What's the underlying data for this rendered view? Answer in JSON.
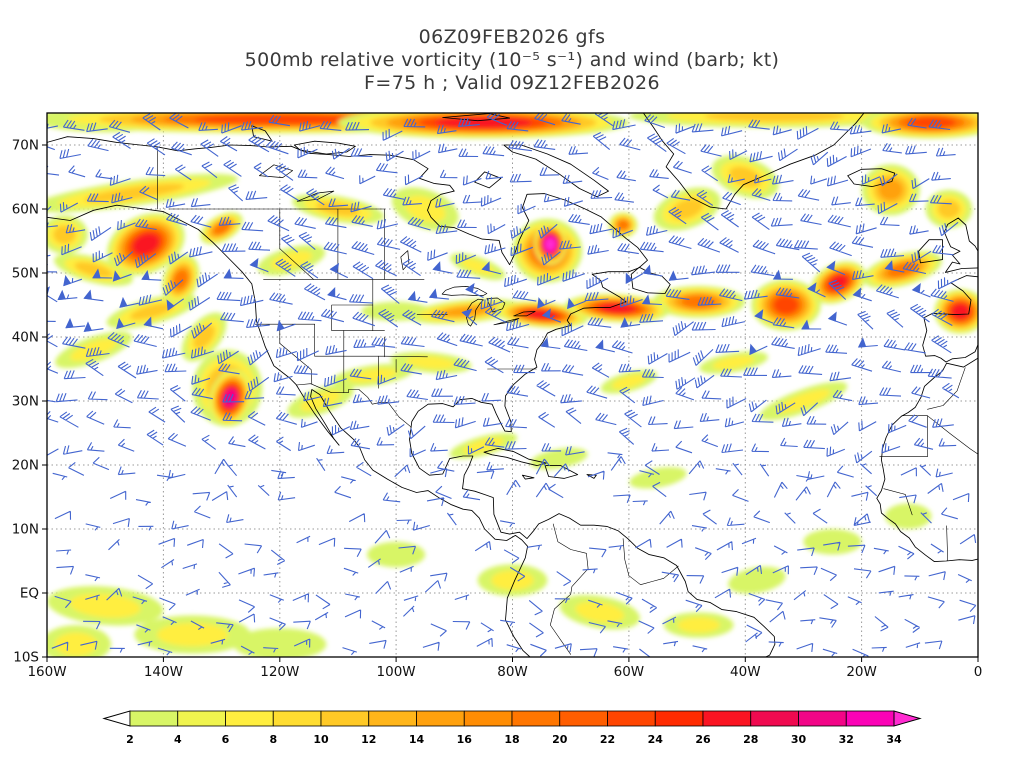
{
  "title": {
    "line1": "06Z09FEB2026 gfs",
    "line2": "500mb relative vorticity (10⁻⁵ s⁻¹) and wind (barb; kt)",
    "line3": "F=75 h ; Valid 09Z12FEB2026"
  },
  "axes": {
    "lat_ticks": [
      {
        "label": "70N",
        "value": 70
      },
      {
        "label": "60N",
        "value": 60
      },
      {
        "label": "50N",
        "value": 50
      },
      {
        "label": "40N",
        "value": 40
      },
      {
        "label": "30N",
        "value": 30
      },
      {
        "label": "20N",
        "value": 20
      },
      {
        "label": "10N",
        "value": 10
      },
      {
        "label": "EQ",
        "value": 0
      },
      {
        "label": "10S",
        "value": -10
      }
    ],
    "lon_ticks": [
      {
        "label": "160W",
        "value": -160
      },
      {
        "label": "140W",
        "value": -140
      },
      {
        "label": "120W",
        "value": -120
      },
      {
        "label": "100W",
        "value": -100
      },
      {
        "label": "80W",
        "value": -80
      },
      {
        "label": "60W",
        "value": -60
      },
      {
        "label": "40W",
        "value": -40
      },
      {
        "label": "20W",
        "value": -20
      },
      {
        "label": "0",
        "value": 0
      }
    ]
  },
  "palette": {
    "title_text": "#3a3a3a",
    "axis_text": "#111111",
    "grid": "#999999",
    "coast": "#000000",
    "frame": "#000000",
    "background": "#ffffff"
  },
  "chart_data": {
    "type": "heatmap",
    "model": "gfs",
    "init_time": "06Z09FEB2026",
    "forecast_hour_h": 75,
    "valid_time": "09Z12FEB2026",
    "level": "500mb",
    "field": "relative vorticity",
    "units": "10⁻⁵ s⁻¹",
    "wind_annotation": "wind (barb; kt)",
    "lon_range": [
      -160,
      0
    ],
    "lat_range": [
      -10,
      75
    ],
    "grid_spacing_deg": {
      "lat": 10,
      "lon": 20
    },
    "colorbar": {
      "levels": [
        2,
        4,
        6,
        8,
        10,
        12,
        14,
        16,
        18,
        20,
        22,
        24,
        26,
        28,
        30,
        32,
        34
      ],
      "colors": [
        "#d8f566",
        "#f0f44e",
        "#ffee3f",
        "#ffdd31",
        "#ffc926",
        "#ffb51a",
        "#ffa10e",
        "#ff8d04",
        "#ff7600",
        "#ff5e00",
        "#ff4500",
        "#ff2b00",
        "#fa1422",
        "#f00a50",
        "#f20587",
        "#fb02b6"
      ],
      "below_color": "#ffffff",
      "above_color": "#ff2bd1"
    },
    "vorticity_feature_columns": [
      "lon",
      "lat",
      "rx_deg",
      "ry_deg",
      "rotation_deg",
      "peak"
    ],
    "vorticity_features": [
      [
        -120,
        74,
        42,
        2.2,
        0,
        22
      ],
      [
        -85,
        73.5,
        25,
        2.5,
        0,
        26
      ],
      [
        -35,
        74.5,
        25,
        1.8,
        0,
        12
      ],
      [
        -8,
        73.5,
        12,
        2.5,
        0,
        22
      ],
      [
        -150,
        74,
        12,
        2,
        0,
        16
      ],
      [
        -145,
        62.5,
        18,
        2,
        -8,
        12
      ],
      [
        -157,
        56,
        4,
        3,
        0,
        10
      ],
      [
        -143,
        54.5,
        7,
        4.5,
        -25,
        26
      ],
      [
        -152,
        50.5,
        7,
        2,
        15,
        12
      ],
      [
        -137,
        49,
        3,
        4,
        20,
        18
      ],
      [
        -130,
        57,
        4,
        2,
        -30,
        20
      ],
      [
        -73.5,
        54.5,
        2.8,
        3.2,
        0,
        35
      ],
      [
        -74,
        53.5,
        6,
        5,
        0,
        22
      ],
      [
        -88,
        44,
        10,
        1.8,
        -5,
        14
      ],
      [
        -75,
        43.5,
        8,
        2,
        5,
        26
      ],
      [
        -62,
        44.5,
        9,
        2.2,
        3,
        26
      ],
      [
        -48,
        45.5,
        8,
        2.5,
        0,
        18
      ],
      [
        -61,
        57.5,
        2.5,
        2,
        0,
        18
      ],
      [
        -33,
        45,
        6,
        4,
        0,
        22
      ],
      [
        -24,
        48.5,
        5,
        3,
        -25,
        26
      ],
      [
        -13,
        50.5,
        7,
        2.5,
        -15,
        18
      ],
      [
        -3,
        44,
        4.5,
        3.5,
        0,
        26
      ],
      [
        -42,
        36,
        6,
        1.5,
        -10,
        8
      ],
      [
        -30,
        30,
        8,
        1.8,
        -20,
        8
      ],
      [
        -128.5,
        30.5,
        3.5,
        4.5,
        15,
        32
      ],
      [
        -129,
        32,
        6,
        6,
        0,
        14
      ],
      [
        -133,
        40,
        5,
        2.5,
        -50,
        12
      ],
      [
        -142,
        44,
        8,
        2,
        -15,
        10
      ],
      [
        -152,
        38,
        7,
        2,
        -20,
        8
      ],
      [
        -113,
        30,
        6,
        2,
        -20,
        8
      ],
      [
        -104,
        34,
        7,
        1.6,
        -8,
        8
      ],
      [
        -94,
        36,
        7,
        1.6,
        5,
        6
      ],
      [
        -85,
        23,
        6,
        1.5,
        -15,
        6
      ],
      [
        -72,
        21,
        5,
        1.5,
        -10,
        4
      ],
      [
        -150,
        -2,
        10,
        3,
        5,
        6
      ],
      [
        -135,
        -6.5,
        10,
        3,
        0,
        6
      ],
      [
        -120,
        -8,
        8,
        2.5,
        0,
        4
      ],
      [
        -155,
        -8,
        6,
        3,
        0,
        6
      ],
      [
        -100,
        6,
        5,
        2,
        0,
        4
      ],
      [
        -80,
        2,
        6,
        2.5,
        0,
        6
      ],
      [
        -65,
        -3,
        7,
        2.5,
        10,
        6
      ],
      [
        -48,
        -5,
        6,
        2,
        0,
        6
      ],
      [
        -38,
        2,
        5,
        2,
        -10,
        4
      ],
      [
        -25,
        8,
        5,
        2,
        0,
        4
      ],
      [
        -12,
        12,
        4,
        2,
        0,
        4
      ],
      [
        -55,
        18,
        5,
        1.5,
        -10,
        4
      ],
      [
        -50,
        60,
        6,
        3,
        -20,
        10
      ],
      [
        -40,
        65,
        6,
        3,
        20,
        10
      ],
      [
        -15,
        63,
        5,
        4,
        0,
        14
      ],
      [
        -5,
        60,
        4,
        3,
        0,
        12
      ],
      [
        -95,
        60,
        6,
        3,
        20,
        8
      ],
      [
        -110,
        60,
        8,
        2,
        10,
        10
      ],
      [
        -118,
        52,
        6,
        2,
        -15,
        8
      ],
      [
        -86,
        51,
        5,
        1.5,
        20,
        6
      ],
      [
        -100,
        44,
        6,
        1.5,
        0,
        4
      ],
      [
        -60,
        33,
        5,
        1.5,
        -15,
        6
      ]
    ],
    "wind_barbs": {
      "color": "#4365cf",
      "midlat_regime": "westerlies 20-60 kt, strongest near 40-50N and along 70N band",
      "tropics_regime": "easterlies 5-20 kt, sparser coverage"
    }
  }
}
